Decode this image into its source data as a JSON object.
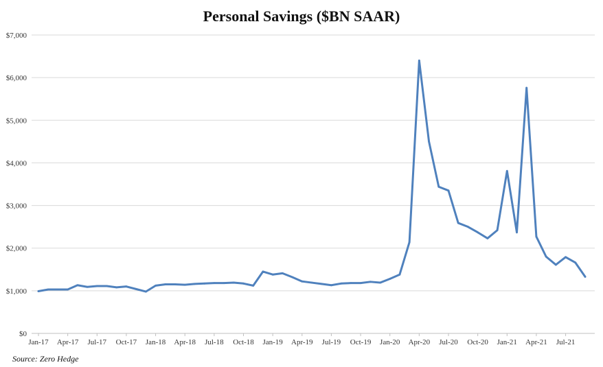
{
  "chart_data": {
    "type": "line",
    "title": "Personal Savings ($BN SAAR)",
    "source": "Source: Zero Hedge",
    "xlabel": "",
    "ylabel": "",
    "ylim": [
      0,
      7000
    ],
    "y_ticks": [
      0,
      1000,
      2000,
      3000,
      4000,
      5000,
      6000,
      7000
    ],
    "y_tick_labels": [
      "$0",
      "$1,000",
      "$2,000",
      "$3,000",
      "$4,000",
      "$5,000",
      "$6,000",
      "$7,000"
    ],
    "x_tick_labels": [
      "Jan-17",
      "Apr-17",
      "Jul-17",
      "Oct-17",
      "Jan-18",
      "Apr-18",
      "Jul-18",
      "Oct-18",
      "Jan-19",
      "Apr-19",
      "Jul-19",
      "Oct-19",
      "Jan-20",
      "Apr-20",
      "Jul-20",
      "Oct-20",
      "Jan-21",
      "Apr-21",
      "Jul-21"
    ],
    "x_tick_index": [
      0,
      3,
      6,
      9,
      12,
      15,
      18,
      21,
      24,
      27,
      30,
      33,
      36,
      39,
      42,
      45,
      48,
      51,
      54
    ],
    "grid": true,
    "legend": "none",
    "series": [
      {
        "color": "#4f81bd",
        "values": [
          990,
          1030,
          1030,
          1030,
          1130,
          1090,
          1110,
          1110,
          1080,
          1100,
          1040,
          980,
          1120,
          1150,
          1150,
          1140,
          1160,
          1170,
          1180,
          1180,
          1190,
          1170,
          1120,
          1450,
          1380,
          1410,
          1320,
          1220,
          1190,
          1160,
          1130,
          1170,
          1180,
          1180,
          1210,
          1190,
          1280,
          1380,
          2140,
          6400,
          4500,
          3440,
          3350,
          2590,
          2500,
          2370,
          2230,
          2420,
          3810,
          2370,
          5760,
          2270,
          1800,
          1610,
          1790,
          1660,
          1330
        ]
      }
    ]
  }
}
